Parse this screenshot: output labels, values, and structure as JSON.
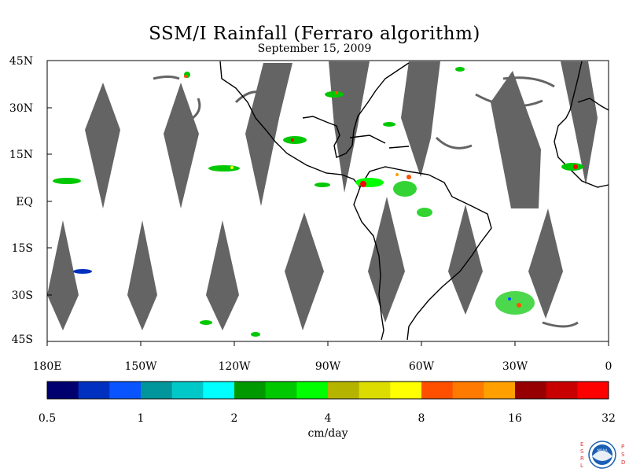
{
  "title": "SSM/I Rainfall (Ferraro algorithm)",
  "subtitle": "September 15, 2009",
  "lat_labels": [
    "45N",
    "30N",
    "15N",
    "EQ",
    "15S",
    "30S",
    "45S"
  ],
  "lon_labels": [
    "180E",
    "150W",
    "120W",
    "90W",
    "60W",
    "30W",
    "0"
  ],
  "colorbar": {
    "unit": "cm/day",
    "tick_labels": [
      "0.5",
      "1",
      "2",
      "4",
      "8",
      "16",
      "32"
    ],
    "colors": [
      "#00006e",
      "#0030c0",
      "#0a54ff",
      "#00969c",
      "#00c8c8",
      "#00ffff",
      "#009a00",
      "#00c800",
      "#00ff00",
      "#b4b400",
      "#dcdc00",
      "#ffff00",
      "#ff5000",
      "#ff7a00",
      "#ffa000",
      "#960000",
      "#c80000",
      "#ff0000"
    ]
  },
  "logo": {
    "left_letters": [
      "E",
      "S",
      "R",
      "L"
    ],
    "right_letters": [
      "P",
      "S",
      "D"
    ],
    "center": "NOAA"
  },
  "map_colors": {
    "gap": "#646464",
    "land_outline": "#000000"
  }
}
